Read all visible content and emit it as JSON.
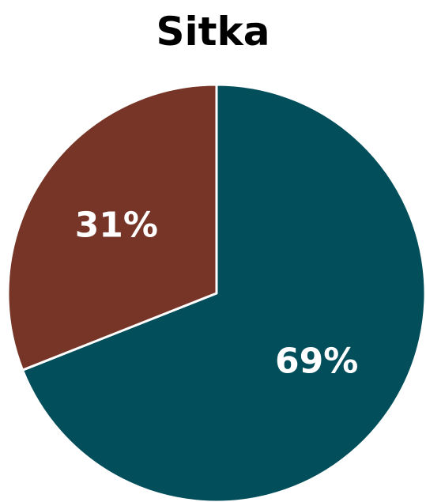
{
  "chart_data": {
    "type": "pie",
    "title": "Sitka",
    "slices": [
      {
        "label": "69%",
        "value": 69,
        "color": "#024e5b"
      },
      {
        "label": "31%",
        "value": 31,
        "color": "#763526"
      }
    ],
    "start_angle_deg": 0,
    "direction": "clockwise",
    "slice_border_color": "#ffffff",
    "legend": "none"
  }
}
